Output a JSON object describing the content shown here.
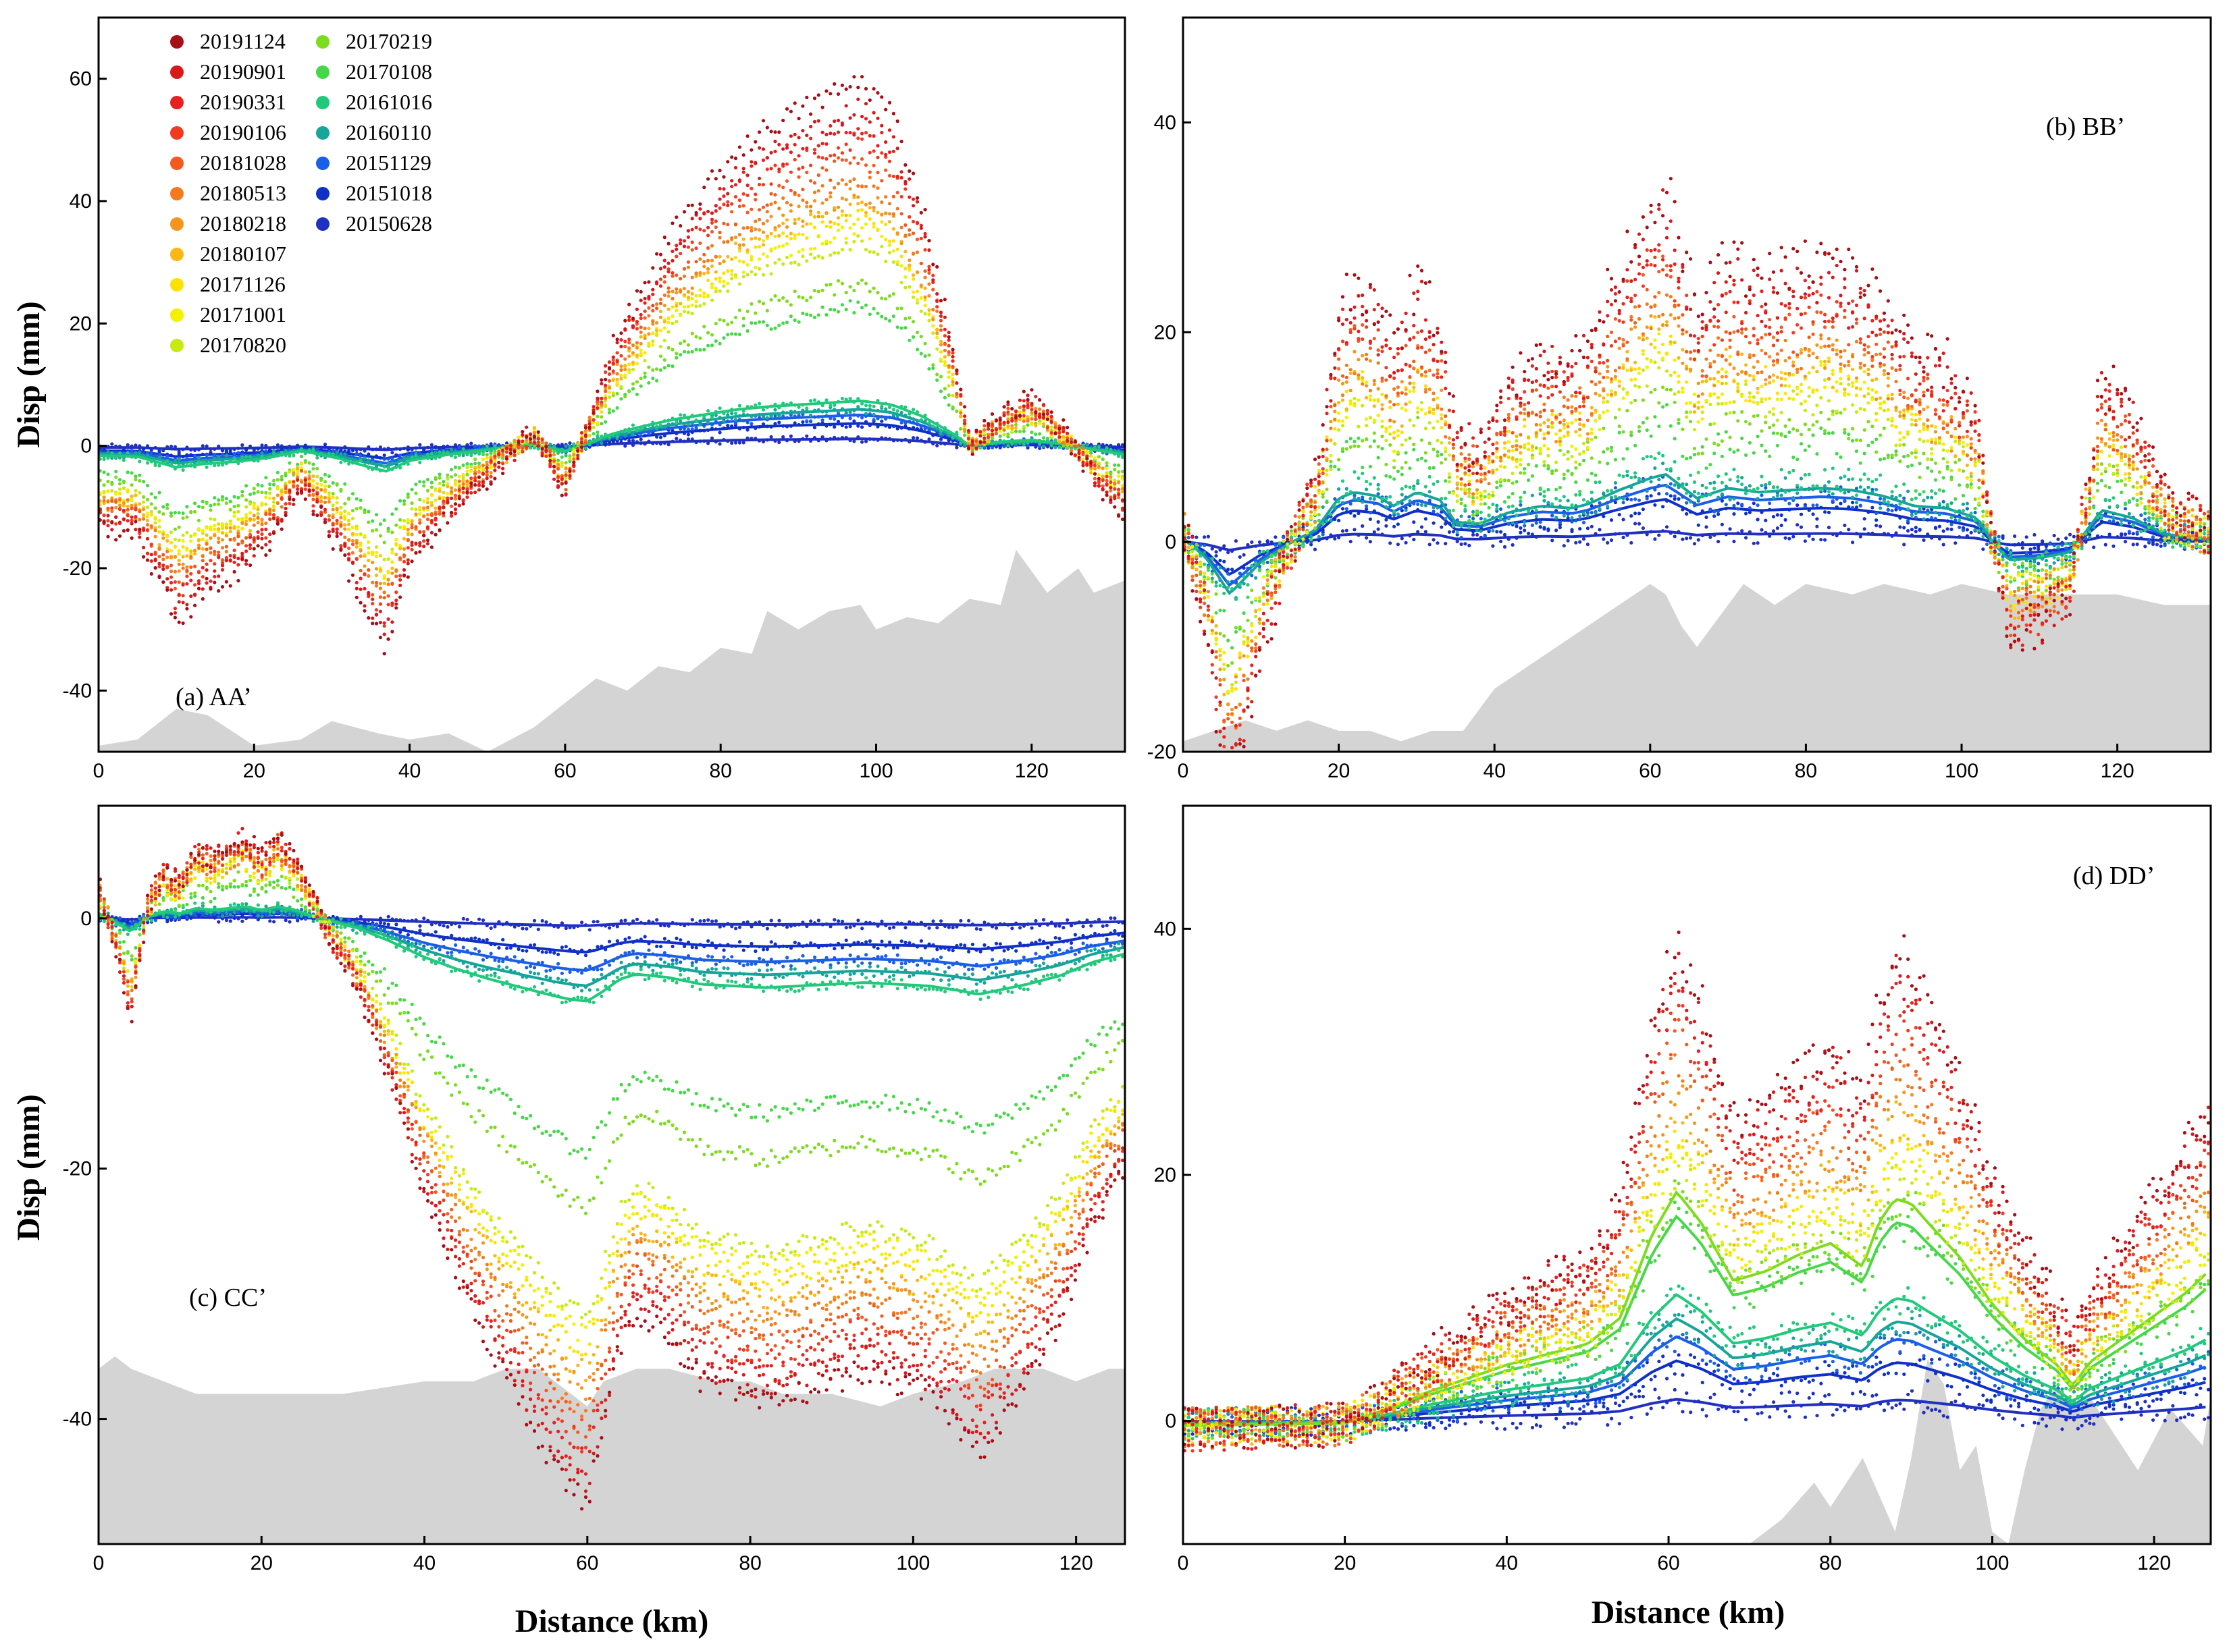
{
  "chart_data": {
    "type": "scatter",
    "legend": {
      "location": "top-left of panel (a)",
      "entries": [
        {
          "label": "20191124",
          "color": "#a50f15"
        },
        {
          "label": "20190901",
          "color": "#d7191c"
        },
        {
          "label": "20190331",
          "color": "#e8201f"
        },
        {
          "label": "20190106",
          "color": "#f03b20"
        },
        {
          "label": "20181028",
          "color": "#f4591f"
        },
        {
          "label": "20180513",
          "color": "#f57a1e"
        },
        {
          "label": "20180218",
          "color": "#f7941d"
        },
        {
          "label": "20180107",
          "color": "#fbb714"
        },
        {
          "label": "20171126",
          "color": "#fde200"
        },
        {
          "label": "20171001",
          "color": "#f5ef00"
        },
        {
          "label": "20170820",
          "color": "#c8ea12"
        },
        {
          "label": "20170219",
          "color": "#7ddc1f"
        },
        {
          "label": "20170108",
          "color": "#47d84a"
        },
        {
          "label": "20161016",
          "color": "#22c97d"
        },
        {
          "label": "20160110",
          "color": "#17a59a"
        },
        {
          "label": "20151129",
          "color": "#1a5fe6"
        },
        {
          "label": "20151018",
          "color": "#1030c8"
        },
        {
          "label": "20150628",
          "color": "#2030c0"
        }
      ]
    },
    "ylabel": "Disp (mm)",
    "xlabel": "Distance (km)",
    "panels": [
      {
        "id": "a",
        "label": "(a) AA’",
        "xlim": [
          0,
          132
        ],
        "ylim": [
          -50,
          70
        ],
        "xticks": [
          0,
          20,
          40,
          60,
          80,
          100,
          120
        ],
        "yticks": [
          -40,
          -20,
          0,
          20,
          40,
          60
        ],
        "terrain": {
          "x": [
            0,
            5,
            10,
            14,
            20,
            26,
            30,
            36,
            40,
            45,
            50,
            56,
            60,
            64,
            68,
            72,
            76,
            80,
            84,
            86,
            90,
            94,
            98,
            100,
            104,
            108,
            112,
            116,
            118,
            122,
            126,
            128,
            132
          ],
          "y": [
            -49,
            -48,
            -43,
            -44,
            -49,
            -48,
            -45,
            -47,
            -48,
            -47,
            -50,
            -46,
            -42,
            -38,
            -40,
            -36,
            -37,
            -33,
            -34,
            -27,
            -30,
            -27,
            -26,
            -30,
            -28,
            -29,
            -25,
            -26,
            -17,
            -24,
            -20,
            -24,
            -22
          ]
        },
        "shape": {
          "x": [
            0,
            5,
            10,
            14,
            18,
            22,
            26,
            28,
            31,
            34,
            37,
            40,
            44,
            48,
            52,
            56,
            60,
            62,
            66,
            70,
            74,
            78,
            82,
            86,
            90,
            94,
            98,
            102,
            106,
            110,
            112,
            116,
            120,
            124,
            128,
            132
          ],
          "y": [
            -1,
            -1.1,
            -2.2,
            -1.8,
            -1.6,
            -1.2,
            -0.5,
            -0.8,
            -1.3,
            -2,
            -2.6,
            -1.5,
            -1,
            -0.6,
            -0.2,
            0.2,
            -0.6,
            0,
            1.2,
            2,
            2.7,
            3.2,
            3.7,
            4,
            4.2,
            4.4,
            4.6,
            4.2,
            3,
            1.2,
            0,
            0.4,
            0.6,
            0.2,
            -0.4,
            -0.9
          ]
        },
        "amplitudes": [
          13,
          12,
          11.5,
          11,
          10.2,
          9.5,
          9,
          8.6,
          8.2,
          7.8,
          7.3,
          5.8,
          5,
          1.6,
          1.3,
          1.1,
          0.8,
          0.25
        ],
        "noise": 1.5
      },
      {
        "id": "b",
        "label": "(b) BB’",
        "xlim": [
          0,
          132
        ],
        "ylim": [
          -20,
          50
        ],
        "xticks": [
          0,
          20,
          40,
          60,
          80,
          100,
          120
        ],
        "yticks": [
          -20,
          0,
          20,
          40
        ],
        "terrain": {
          "x": [
            0,
            4,
            8,
            12,
            16,
            20,
            24,
            28,
            32,
            36,
            40,
            44,
            48,
            52,
            56,
            60,
            62,
            64,
            66,
            70,
            72,
            76,
            80,
            86,
            90,
            96,
            100,
            106,
            110,
            116,
            120,
            126,
            132
          ],
          "y": [
            -19,
            -18,
            -17,
            -18,
            -17,
            -18,
            -18,
            -19,
            -18,
            -18,
            -14,
            -12,
            -10,
            -8,
            -6,
            -4,
            -5,
            -8,
            -10,
            -6,
            -4,
            -6,
            -4,
            -5,
            -4,
            -5,
            -4,
            -5,
            -5,
            -5,
            -5,
            -6,
            -6
          ]
        },
        "shape": {
          "x": [
            0,
            3,
            6,
            10,
            14,
            17,
            20,
            22,
            25,
            27,
            30,
            33,
            35,
            38,
            42,
            46,
            50,
            52,
            56,
            60,
            62,
            66,
            70,
            74,
            78,
            82,
            86,
            90,
            94,
            98,
            102,
            104,
            106,
            110,
            114,
            118,
            122,
            126,
            130,
            132
          ],
          "y": [
            0.2,
            -0.8,
            -2.6,
            -1,
            0,
            0.6,
            2.2,
            2.5,
            2.3,
            1.8,
            2.5,
            2.1,
            1,
            0.9,
            1.5,
            1.8,
            1.7,
            1.9,
            2.6,
            3.2,
            3.4,
            2.2,
            2.7,
            2.5,
            2.6,
            2.7,
            2.6,
            2.3,
            1.8,
            1.7,
            1.2,
            0,
            -0.9,
            -0.8,
            -0.5,
            1.6,
            1.2,
            0.4,
            0.2,
            0.1
          ]
        },
        "amplitudes": [
          10,
          9.3,
          8.7,
          8.2,
          7.6,
          7,
          6.5,
          6.2,
          5.9,
          5.6,
          5.2,
          4.2,
          3.5,
          2.2,
          1.9,
          1.6,
          1.2,
          0.3
        ],
        "noise": 2.5
      },
      {
        "id": "c",
        "label": "(c) CC’",
        "xlim": [
          0,
          126
        ],
        "ylim": [
          -50,
          9
        ],
        "xticks": [
          0,
          20,
          40,
          60,
          80,
          100,
          120
        ],
        "yticks": [
          -40,
          -20,
          0
        ],
        "terrain": {
          "x": [
            0,
            2,
            4,
            8,
            12,
            20,
            30,
            40,
            46,
            50,
            54,
            56,
            58,
            60,
            62,
            66,
            70,
            76,
            80,
            84,
            90,
            96,
            100,
            106,
            110,
            116,
            120,
            124,
            126
          ],
          "y": [
            -36,
            -35,
            -36,
            -37,
            -38,
            -38,
            -38,
            -37,
            -37,
            -36,
            -36,
            -37,
            -38,
            -39,
            -37,
            -36,
            -36,
            -37,
            -37,
            -38,
            -38,
            -39,
            -38,
            -37,
            -36,
            -36,
            -37,
            -36,
            -36
          ]
        },
        "shape": {
          "x": [
            0,
            2,
            4,
            6,
            8,
            10,
            12,
            14,
            16,
            18,
            20,
            22,
            24,
            26,
            28,
            32,
            36,
            40,
            44,
            48,
            52,
            56,
            58,
            60,
            62,
            64,
            66,
            70,
            74,
            78,
            82,
            86,
            90,
            94,
            98,
            102,
            106,
            108,
            110,
            114,
            118,
            122,
            126
          ],
          "y": [
            0.3,
            -0.2,
            -0.8,
            0.1,
            0.4,
            0.3,
            0.6,
            0.5,
            0.6,
            0.7,
            0.5,
            0.7,
            0.5,
            0.2,
            -0.1,
            -0.6,
            -1.4,
            -2.3,
            -3,
            -3.6,
            -4.1,
            -4.6,
            -4.8,
            -4.9,
            -4.3,
            -3.6,
            -3.3,
            -3.5,
            -3.9,
            -4,
            -4.1,
            -4,
            -3.9,
            -3.8,
            -3.9,
            -4,
            -4.3,
            -4.5,
            -4.3,
            -3.9,
            -3.4,
            -2.6,
            -2.1
          ]
        },
        "amplitudes": [
          9.5,
          9.2,
          8.9,
          8.6,
          8.3,
          8,
          7.7,
          7.4,
          7.1,
          6.8,
          6.5,
          4.7,
          3.8,
          1.35,
          1.1,
          0.85,
          0.55,
          0.12
        ],
        "noise": 1.0
      },
      {
        "id": "d",
        "label": "(d) DD’",
        "xlim": [
          0,
          127
        ],
        "ylim": [
          -10,
          50
        ],
        "xticks": [
          0,
          20,
          40,
          60,
          80,
          100,
          120
        ],
        "yticks": [
          0,
          20,
          40
        ],
        "terrain": {
          "x": [
            0,
            70,
            74,
            78,
            80,
            84,
            88,
            90,
            92,
            94,
            96,
            98,
            100,
            102,
            104,
            106,
            108,
            110,
            112,
            114,
            118,
            122,
            126,
            127
          ],
          "y": [
            -10,
            -10,
            -8,
            -5,
            -7,
            -3,
            -9,
            -3,
            5,
            3,
            -4,
            -2,
            -9,
            -10,
            -4,
            1,
            3,
            1,
            2,
            0,
            -4,
            1,
            -2,
            2
          ]
        },
        "shape": {
          "x": [
            0,
            20,
            26,
            30,
            40,
            50,
            54,
            58,
            61,
            64,
            68,
            72,
            76,
            80,
            84,
            86,
            88,
            90,
            92,
            96,
            100,
            104,
            108,
            110,
            112,
            116,
            120,
            124,
            127
          ],
          "y": [
            -0.2,
            -0.1,
            0.6,
            1.2,
            2.4,
            3.3,
            4.4,
            8,
            9.8,
            8.5,
            6,
            6.4,
            7.1,
            7.6,
            6.6,
            8.5,
            9.5,
            9.3,
            8.5,
            7,
            5,
            3.5,
            2.4,
            1.5,
            2.5,
            3.5,
            4.5,
            5.5,
            6.5
          ]
        },
        "amplitudes": [
          4,
          3.8,
          3.6,
          3.4,
          3.2,
          3,
          2.8,
          2.6,
          2.4,
          2.25,
          2.1,
          1.9,
          1.7,
          1.05,
          0.85,
          0.7,
          0.5,
          0.18
        ],
        "noise": 3.0
      }
    ]
  }
}
